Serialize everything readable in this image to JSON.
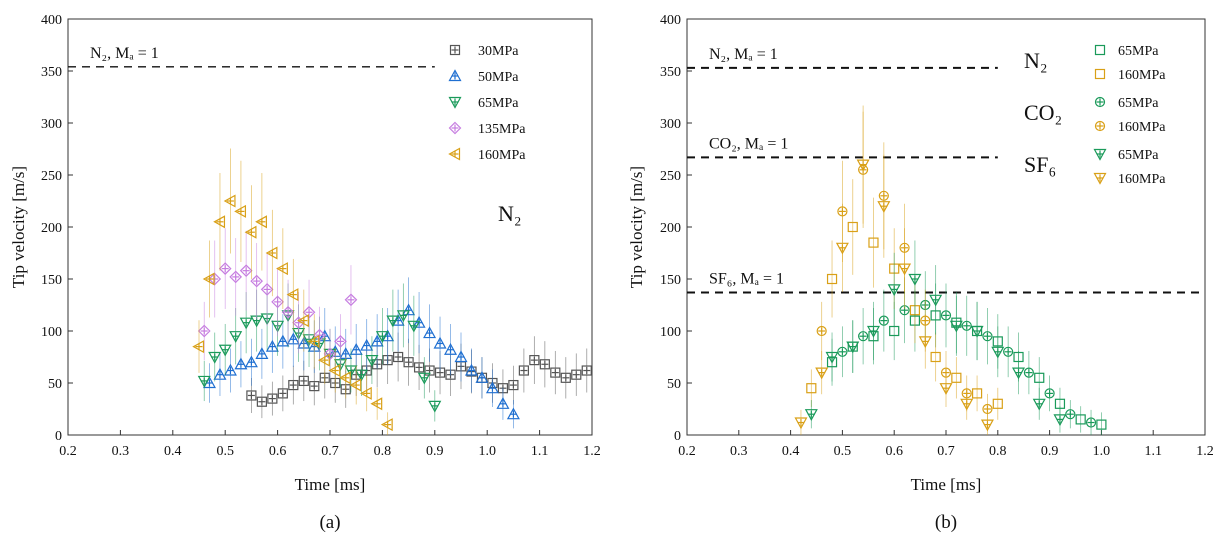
{
  "chart_data": [
    {
      "type": "scatter",
      "panel_label": "(a)",
      "xlabel": "Time [ms]",
      "ylabel": "Tip velocity [m/s]",
      "xlim": [
        0.2,
        1.2
      ],
      "ylim": [
        0,
        400
      ],
      "xticks": [
        "0.2",
        "0.3",
        "0.4",
        "0.5",
        "0.6",
        "0.7",
        "0.8",
        "0.9",
        "1.0",
        "1.1",
        "1.2"
      ],
      "yticks": [
        "0",
        "50",
        "100",
        "150",
        "200",
        "250",
        "300",
        "350",
        "400"
      ],
      "gas_label": "N₂",
      "reference_lines": [
        {
          "text": "N₂, Mₐ = 1",
          "y": 354,
          "x_range": [
            0.2,
            0.9
          ]
        }
      ],
      "legend_position": "top-right",
      "series": [
        {
          "name": "30MPa",
          "color": "#555555",
          "marker": "square-cross",
          "x": [
            0.55,
            0.57,
            0.59,
            0.61,
            0.63,
            0.65,
            0.67,
            0.69,
            0.71,
            0.73,
            0.75,
            0.77,
            0.79,
            0.81,
            0.83,
            0.85,
            0.87,
            0.89,
            0.91,
            0.93,
            0.95,
            0.97,
            0.99,
            1.01,
            1.03,
            1.05,
            1.07,
            1.09,
            1.11,
            1.13,
            1.15,
            1.17,
            1.19
          ],
          "y": [
            38,
            32,
            35,
            40,
            48,
            52,
            47,
            55,
            50,
            44,
            58,
            62,
            68,
            72,
            75,
            70,
            65,
            62,
            60,
            58,
            66,
            61,
            55,
            50,
            45,
            48,
            62,
            72,
            68,
            60,
            55,
            58,
            62
          ]
        },
        {
          "name": "50MPa",
          "color": "#1f6fd1",
          "marker": "triangle-cross",
          "x": [
            0.47,
            0.49,
            0.51,
            0.53,
            0.55,
            0.57,
            0.59,
            0.61,
            0.63,
            0.65,
            0.67,
            0.69,
            0.71,
            0.73,
            0.75,
            0.77,
            0.79,
            0.81,
            0.83,
            0.85,
            0.87,
            0.89,
            0.91,
            0.93,
            0.95,
            0.97,
            0.99,
            1.01,
            1.03,
            1.05
          ],
          "y": [
            50,
            58,
            62,
            68,
            70,
            78,
            85,
            90,
            92,
            88,
            85,
            95,
            80,
            78,
            82,
            86,
            90,
            95,
            110,
            120,
            108,
            98,
            88,
            82,
            75,
            62,
            55,
            45,
            30,
            20
          ]
        },
        {
          "name": "65MPa",
          "color": "#1a9a5a",
          "marker": "triangle-down-cross",
          "x": [
            0.46,
            0.48,
            0.5,
            0.52,
            0.54,
            0.56,
            0.58,
            0.6,
            0.62,
            0.64,
            0.66,
            0.68,
            0.7,
            0.72,
            0.74,
            0.76,
            0.78,
            0.8,
            0.82,
            0.84,
            0.86,
            0.88,
            0.9
          ],
          "y": [
            52,
            75,
            82,
            95,
            108,
            110,
            112,
            105,
            115,
            98,
            92,
            88,
            78,
            68,
            62,
            58,
            72,
            95,
            110,
            115,
            105,
            55,
            28
          ]
        },
        {
          "name": "135MPa",
          "color": "#c67de0",
          "marker": "diamond-cross",
          "x": [
            0.46,
            0.48,
            0.5,
            0.52,
            0.54,
            0.56,
            0.58,
            0.6,
            0.62,
            0.64,
            0.66,
            0.68,
            0.7,
            0.72,
            0.74
          ],
          "y": [
            100,
            150,
            160,
            152,
            158,
            148,
            140,
            128,
            118,
            108,
            118,
            96,
            78,
            90,
            130
          ]
        },
        {
          "name": "160MPa",
          "color": "#d9a017",
          "marker": "triangle-left-cross",
          "x": [
            0.45,
            0.47,
            0.49,
            0.51,
            0.53,
            0.55,
            0.57,
            0.59,
            0.61,
            0.63,
            0.65,
            0.67,
            0.69,
            0.71,
            0.73,
            0.75,
            0.77,
            0.79,
            0.81
          ],
          "y": [
            85,
            150,
            205,
            225,
            215,
            195,
            205,
            175,
            160,
            135,
            110,
            90,
            72,
            62,
            55,
            48,
            40,
            30,
            10
          ]
        }
      ]
    },
    {
      "type": "scatter",
      "panel_label": "(b)",
      "xlabel": "Time [ms]",
      "ylabel": "Tip velocity [m/s]",
      "xlim": [
        0.2,
        1.2
      ],
      "ylim": [
        0,
        400
      ],
      "xticks": [
        "0.2",
        "0.3",
        "0.4",
        "0.5",
        "0.6",
        "0.7",
        "0.8",
        "0.9",
        "1.0",
        "1.1",
        "1.2"
      ],
      "yticks": [
        "0",
        "50",
        "100",
        "150",
        "200",
        "250",
        "300",
        "350",
        "400"
      ],
      "reference_lines": [
        {
          "text": "N₂, Mₐ = 1",
          "y": 353,
          "x_range": [
            0.2,
            0.8
          ]
        },
        {
          "text": "CO₂, Mₐ = 1",
          "y": 267,
          "x_range": [
            0.2,
            0.8
          ]
        },
        {
          "text": "SF₆, Mₐ = 1",
          "y": 137,
          "x_range": [
            0.2,
            1.2
          ]
        }
      ],
      "legend_position": "top-right",
      "legend_groups": [
        {
          "gas": "N₂",
          "entries": [
            "65MPa",
            "160MPa"
          ]
        },
        {
          "gas": "CO₂",
          "entries": [
            "65MPa",
            "160MPa"
          ]
        },
        {
          "gas": "SF₆",
          "entries": [
            "65MPa",
            "160MPa"
          ]
        }
      ],
      "series": [
        {
          "name": "N₂ 65MPa",
          "legend": "65MPa",
          "color": "#1a9a5a",
          "marker": "square",
          "x": [
            0.48,
            0.52,
            0.56,
            0.6,
            0.64,
            0.68,
            0.72,
            0.76,
            0.8,
            0.84,
            0.88,
            0.92,
            0.96,
            1.0
          ],
          "y": [
            70,
            85,
            95,
            100,
            110,
            115,
            108,
            100,
            90,
            75,
            55,
            30,
            15,
            10
          ]
        },
        {
          "name": "N₂ 160MPa",
          "legend": "160MPa",
          "color": "#d9a017",
          "marker": "square",
          "x": [
            0.44,
            0.48,
            0.52,
            0.56,
            0.6,
            0.64,
            0.68,
            0.72,
            0.76,
            0.8
          ],
          "y": [
            45,
            150,
            200,
            185,
            160,
            120,
            75,
            55,
            40,
            30
          ]
        },
        {
          "name": "CO₂ 65MPa",
          "legend": "65MPa",
          "color": "#1a9a5a",
          "marker": "circle-cross",
          "x": [
            0.5,
            0.54,
            0.58,
            0.62,
            0.66,
            0.7,
            0.74,
            0.78,
            0.82,
            0.86,
            0.9,
            0.94,
            0.98
          ],
          "y": [
            80,
            95,
            110,
            120,
            125,
            115,
            105,
            95,
            80,
            60,
            40,
            20,
            12
          ]
        },
        {
          "name": "CO₂ 160MPa",
          "legend": "160MPa",
          "color": "#d9a017",
          "marker": "circle-cross",
          "x": [
            0.46,
            0.5,
            0.54,
            0.58,
            0.62,
            0.66,
            0.7,
            0.74,
            0.78
          ],
          "y": [
            100,
            215,
            255,
            230,
            180,
            110,
            60,
            40,
            25
          ]
        },
        {
          "name": "SF₆ 65MPa",
          "legend": "65MPa",
          "color": "#1a9a5a",
          "marker": "triangle-down-cross",
          "x": [
            0.44,
            0.48,
            0.52,
            0.56,
            0.6,
            0.64,
            0.68,
            0.72,
            0.76,
            0.8,
            0.84,
            0.88,
            0.92
          ],
          "y": [
            20,
            75,
            85,
            100,
            140,
            150,
            130,
            105,
            100,
            80,
            60,
            30,
            15
          ]
        },
        {
          "name": "SF₆ 160MPa",
          "legend": "160MPa",
          "color": "#d9a017",
          "marker": "triangle-down-cross",
          "x": [
            0.42,
            0.46,
            0.5,
            0.54,
            0.58,
            0.62,
            0.66,
            0.7,
            0.74,
            0.78
          ],
          "y": [
            12,
            60,
            180,
            260,
            220,
            160,
            90,
            45,
            30,
            10
          ]
        }
      ]
    }
  ]
}
